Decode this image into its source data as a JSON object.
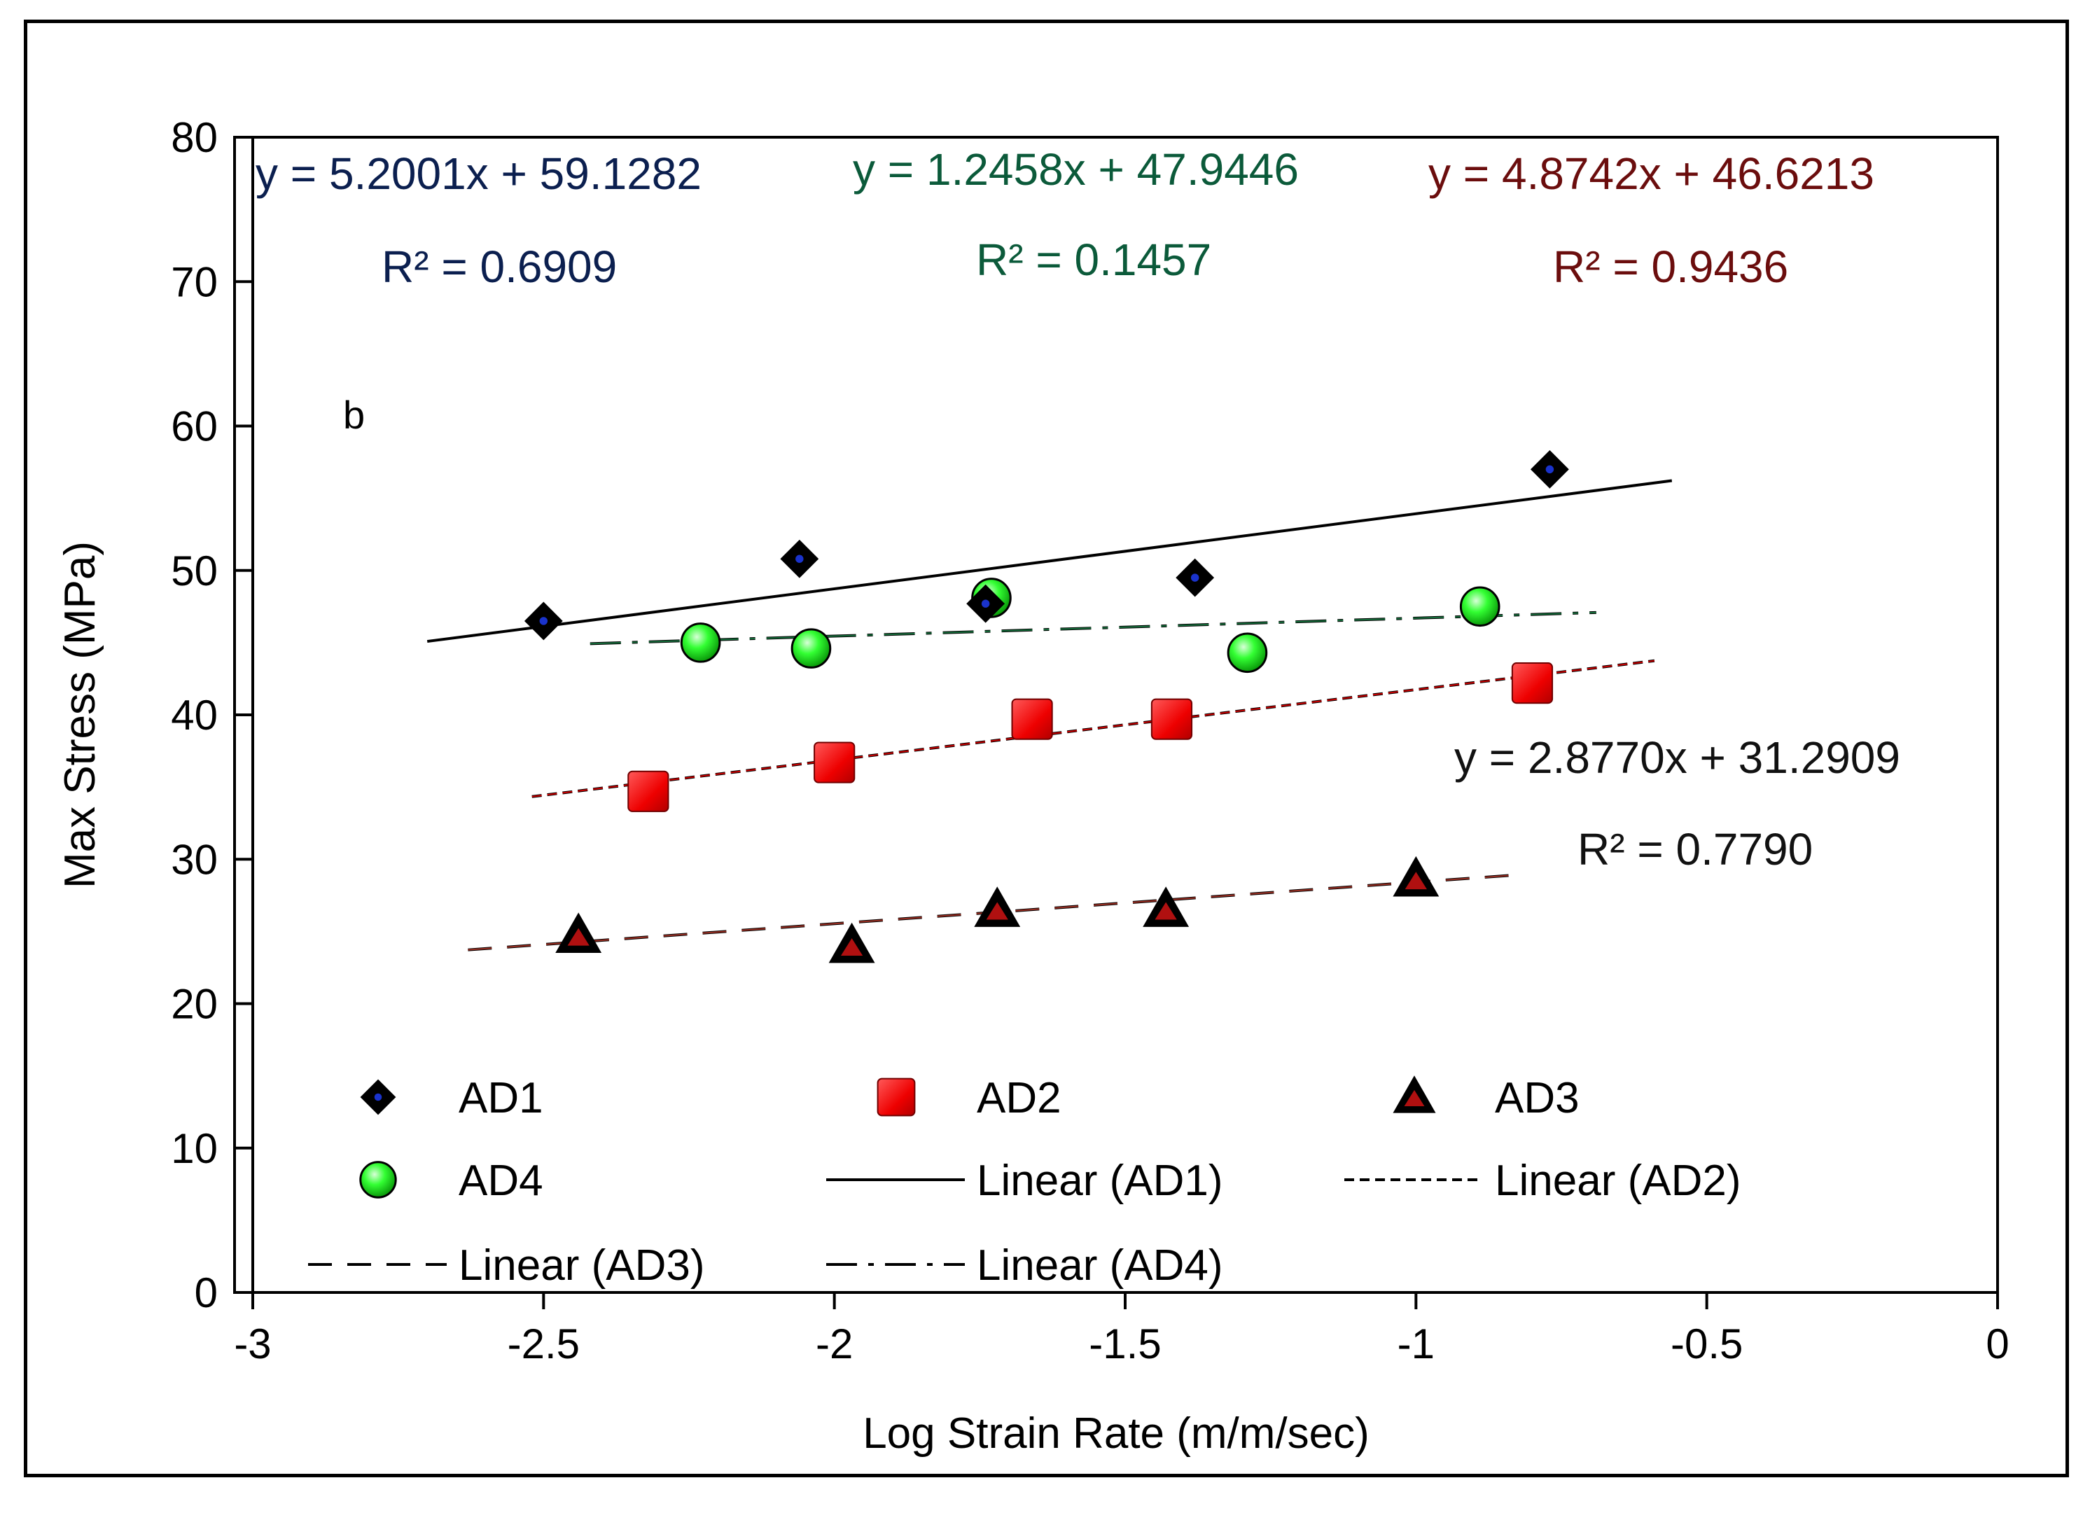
{
  "chart_data": {
    "type": "scatter",
    "panel_label": "b",
    "xlabel": "Log Strain Rate (m/m/sec)",
    "ylabel": "Max Stress (MPa)",
    "xlim": [
      -3,
      0
    ],
    "ylim": [
      0,
      80
    ],
    "xticks": [
      -3,
      -2.5,
      -2,
      -1.5,
      -1,
      -0.5,
      0
    ],
    "yticks": [
      0,
      10,
      20,
      30,
      40,
      50,
      60,
      70,
      80
    ],
    "xtick_labels": [
      "-3",
      "-2.5",
      "-2",
      "-1.5",
      "-1",
      "-0.5",
      "0"
    ],
    "ytick_labels": [
      "0",
      "10",
      "20",
      "30",
      "40",
      "50",
      "60",
      "70",
      "80"
    ],
    "grid": false,
    "series": [
      {
        "name": "AD1",
        "marker": "diamond",
        "color": "#000000",
        "center_color": "#1a33cc",
        "x": [
          -2.5,
          -2.06,
          -1.74,
          -1.38,
          -0.77
        ],
        "y": [
          46.5,
          50.8,
          47.7,
          49.5,
          57.0
        ]
      },
      {
        "name": "AD2",
        "marker": "square",
        "color": "#ff0000",
        "x": [
          -2.32,
          -2.0,
          -1.66,
          -1.42,
          -0.8
        ],
        "y": [
          34.7,
          36.7,
          39.7,
          39.7,
          42.2
        ]
      },
      {
        "name": "AD3",
        "marker": "triangle",
        "color": "#000000",
        "center_color": "#b01010",
        "x": [
          -2.44,
          -1.97,
          -1.72,
          -1.43,
          -1.0
        ],
        "y": [
          24.7,
          24.0,
          26.5,
          26.5,
          28.6
        ]
      },
      {
        "name": "AD4",
        "marker": "circle",
        "color": "#00ff00",
        "x": [
          -2.23,
          -2.04,
          -1.73,
          -1.29,
          -0.89
        ],
        "y": [
          45.0,
          44.6,
          48.1,
          44.3,
          47.5
        ]
      }
    ],
    "trendlines": [
      {
        "name": "Linear (AD1)",
        "style": "solid",
        "color": "#000000",
        "slope": 5.2001,
        "intercept": 59.1282,
        "x_range": [
          -2.7,
          -0.56
        ],
        "equation": "y = 5.2001x + 59.1282",
        "r2": "R² = 0.6909",
        "label_color": "#0b1f4f"
      },
      {
        "name": "Linear (AD2)",
        "style": "dense-dash",
        "color": "#000000",
        "overlay_color": "#ff0000",
        "slope": 4.8742,
        "intercept": 46.6213,
        "x_range": [
          -2.52,
          -0.59
        ],
        "equation": "y = 4.8742x + 46.6213",
        "r2": "R² = 0.9436",
        "label_color": "#6b0d0d"
      },
      {
        "name": "Linear (AD3)",
        "style": "dash",
        "color": "#000000",
        "overlay_color": "#c0392b",
        "slope": 2.877,
        "intercept": 31.2909,
        "x_range": [
          -2.63,
          -0.82
        ],
        "equation": "y = 2.8770x + 31.2909",
        "r2": "R² = 0.7790",
        "label_color": "#111111"
      },
      {
        "name": "Linear (AD4)",
        "style": "dash-dot",
        "color": "#000000",
        "overlay_color": "#1a8a4a",
        "slope": 1.2458,
        "intercept": 47.9446,
        "x_range": [
          -2.42,
          -0.69
        ],
        "equation": "y = 1.2458x + 47.9446",
        "r2": "R² = 0.1457",
        "label_color": "#0b5a3a"
      }
    ],
    "legend": {
      "placement": "bottom-left",
      "entries": [
        "AD1",
        "AD2",
        "AD3",
        "AD4",
        "Linear (AD1)",
        "Linear (AD2)",
        "Linear (AD3)",
        "Linear (AD4)"
      ]
    }
  }
}
